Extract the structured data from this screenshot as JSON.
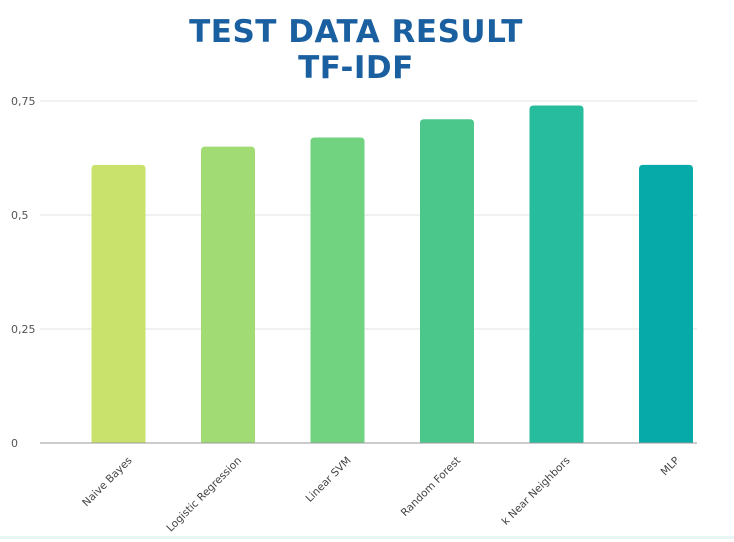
{
  "chart_data": {
    "type": "bar",
    "title": "TEST DATA RESULT",
    "subtitle": "TF-IDF",
    "xlabel": "",
    "ylabel": "",
    "categories": [
      "Naive Bayes",
      "Logistic Regression",
      "Linear SVM",
      "Random Forest",
      "k Near Neighbors",
      "MLP"
    ],
    "values": [
      0.61,
      0.65,
      0.67,
      0.71,
      0.74,
      0.61
    ],
    "ylim": [
      0,
      0.75
    ],
    "yticks": [
      0,
      0.25,
      0.5,
      0.75
    ],
    "ytick_labels": [
      "0",
      "0,25",
      "0,5",
      "0,75"
    ],
    "grid": true,
    "bar_colors": [
      "#c9e26b",
      "#a0dc73",
      "#71d27f",
      "#4bc78c",
      "#26bc9d",
      "#06aaa8"
    ],
    "title_color": "#1a5fa0"
  }
}
